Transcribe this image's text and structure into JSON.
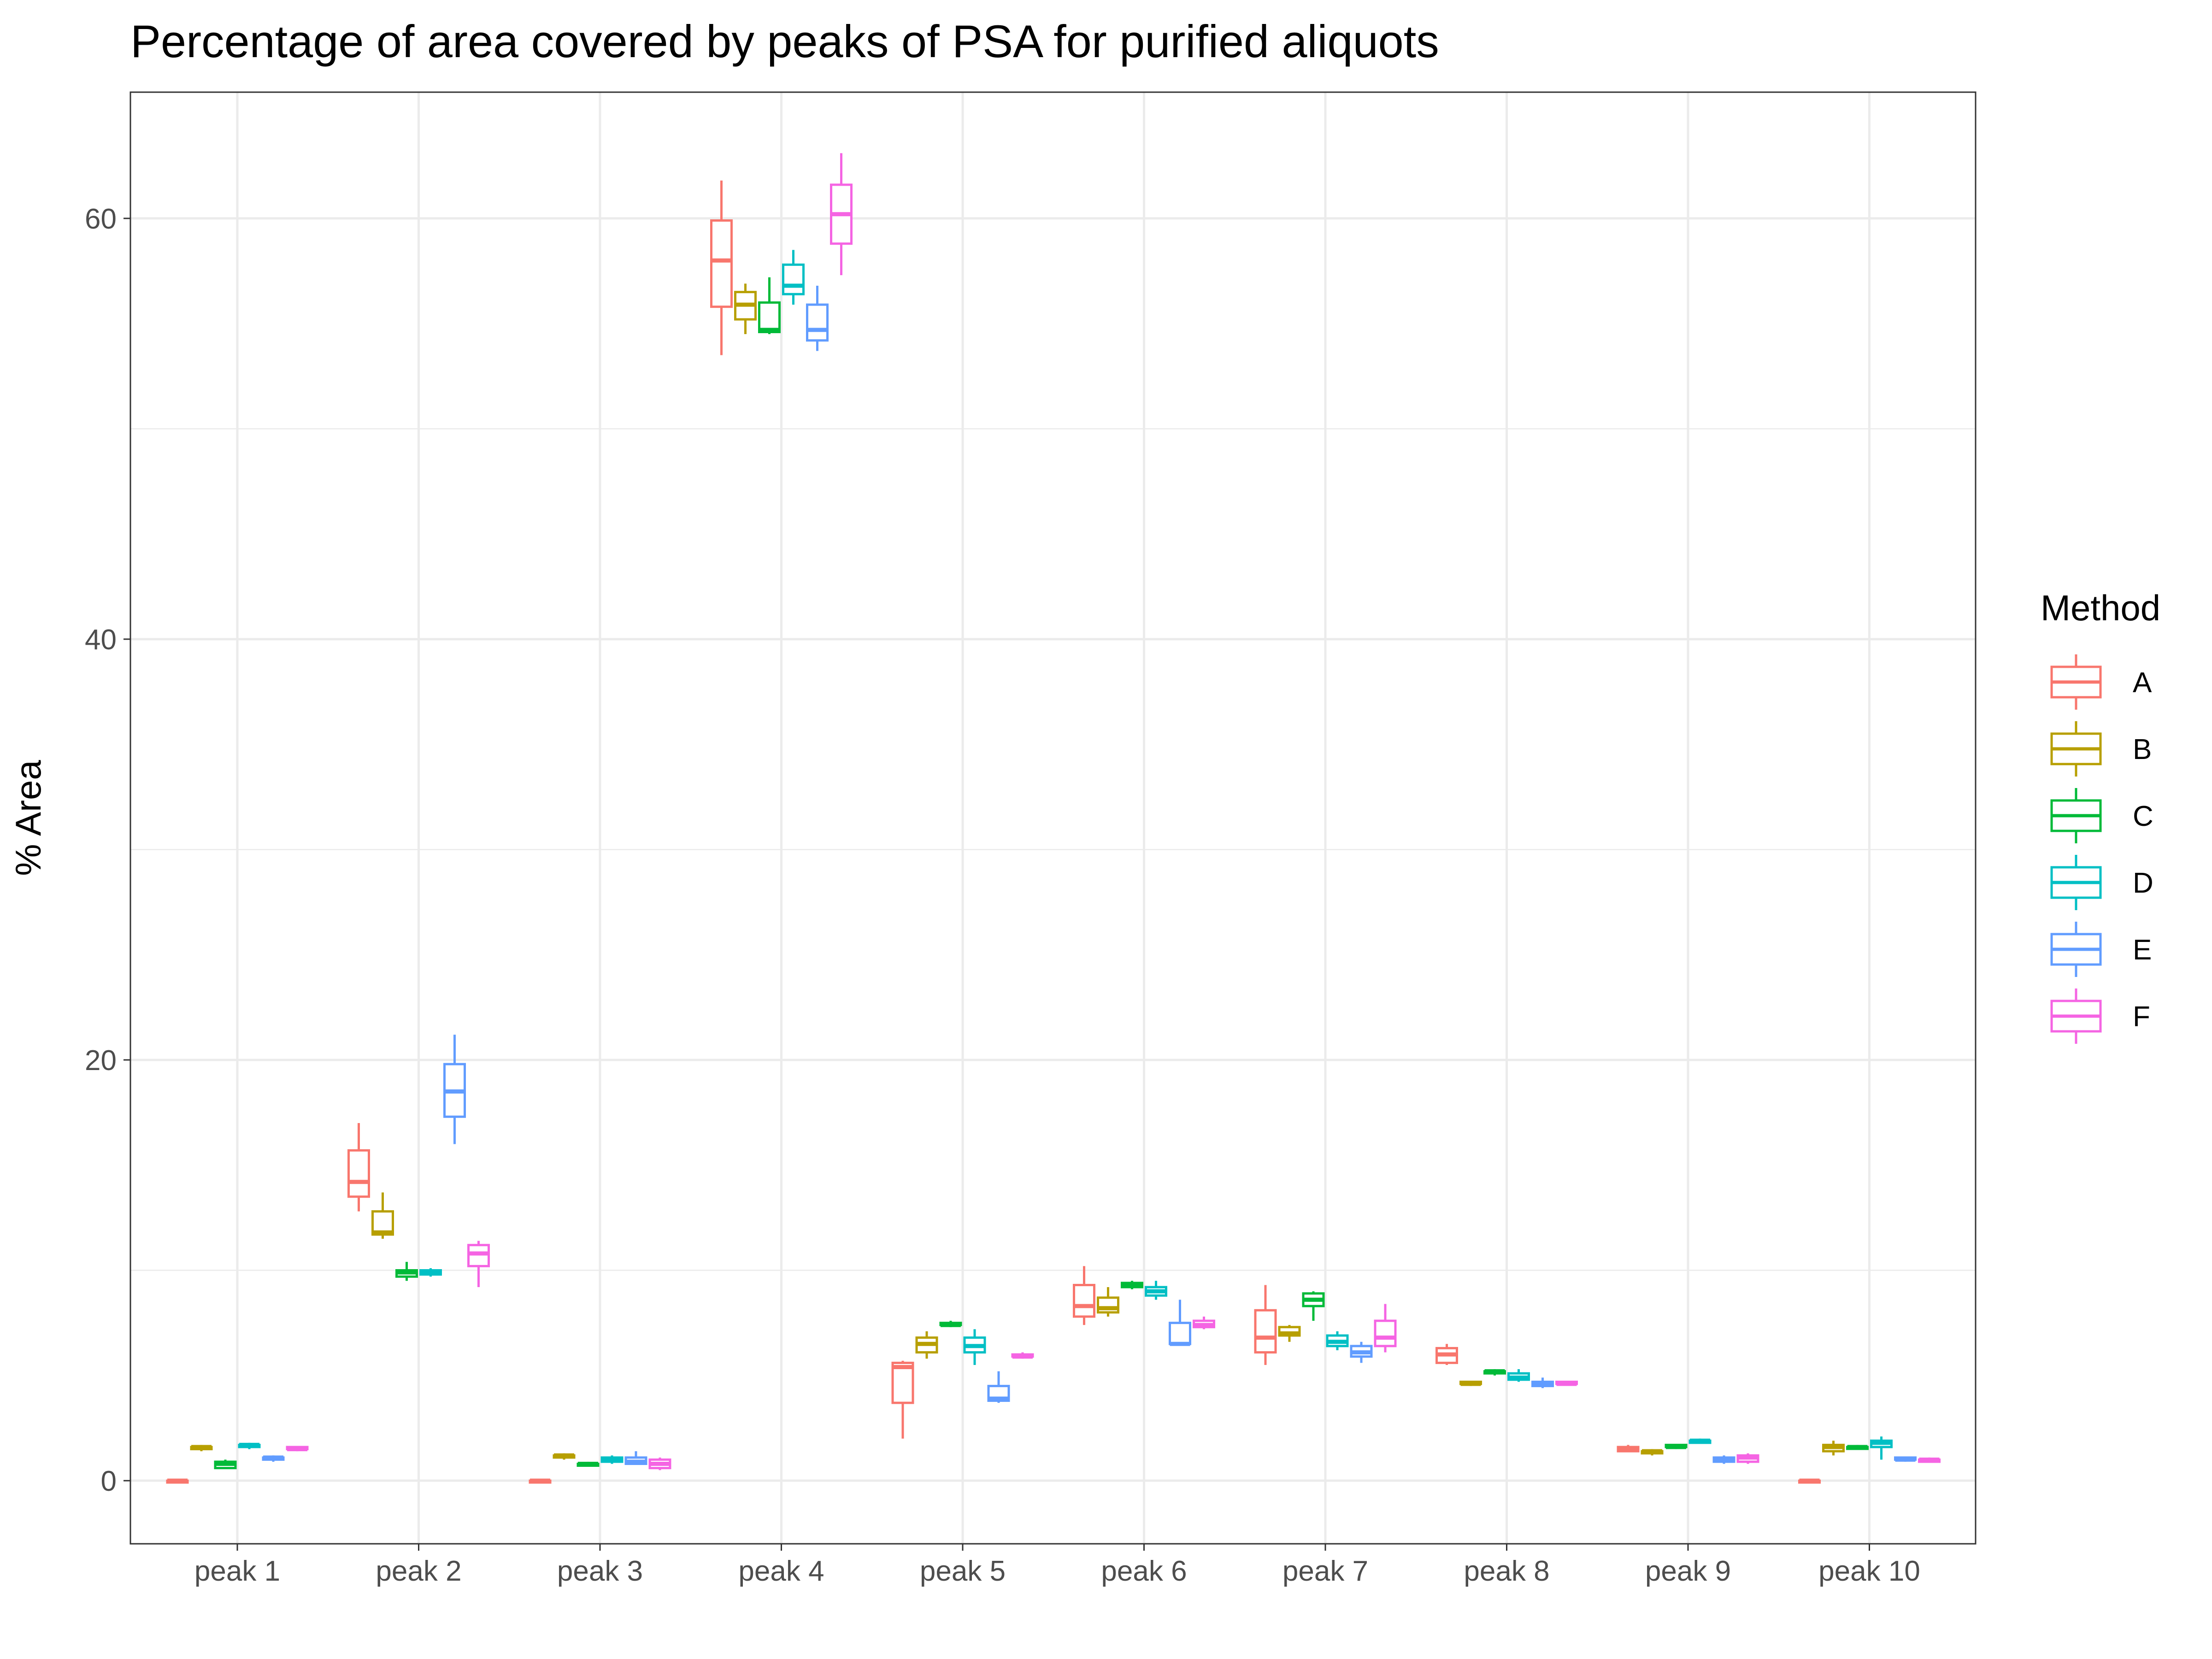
{
  "chart_data": {
    "type": "boxplot",
    "title": "Percentage of area covered by peaks of PSA for purified aliquots",
    "xlabel": "",
    "ylabel": "% Area",
    "ylim": [
      -3,
      66
    ],
    "yticks": [
      0,
      20,
      40,
      60
    ],
    "grid": true,
    "legend": {
      "title": "Method",
      "position": "right"
    },
    "categories": [
      "peak 1",
      "peak 2",
      "peak 3",
      "peak 4",
      "peak 5",
      "peak 6",
      "peak 7",
      "peak 8",
      "peak 9",
      "peak 10"
    ],
    "series": [
      {
        "name": "A",
        "color": "#F8766D",
        "boxes": [
          [
            0,
            0,
            0,
            0,
            0
          ],
          [
            12.8,
            13.5,
            14.2,
            15.7,
            17.0
          ],
          [
            0,
            0,
            0,
            0,
            0
          ],
          [
            53.5,
            55.8,
            58.0,
            59.9,
            61.8
          ],
          [
            2.0,
            3.7,
            5.4,
            5.6,
            5.7
          ],
          [
            7.4,
            7.8,
            8.3,
            9.3,
            10.2
          ],
          [
            5.5,
            6.1,
            6.8,
            8.1,
            9.3
          ],
          [
            5.5,
            5.6,
            6.0,
            6.3,
            6.5
          ],
          [
            1.4,
            1.4,
            1.5,
            1.6,
            1.7
          ],
          [
            0,
            0,
            0,
            0,
            0
          ]
        ]
      },
      {
        "name": "B",
        "color": "#B79F00",
        "boxes": [
          [
            1.4,
            1.5,
            1.6,
            1.6,
            1.7
          ],
          [
            11.5,
            11.7,
            11.8,
            12.8,
            13.7
          ],
          [
            1.0,
            1.1,
            1.2,
            1.2,
            1.3
          ],
          [
            54.5,
            55.2,
            55.9,
            56.5,
            56.9
          ],
          [
            5.8,
            6.1,
            6.5,
            6.8,
            7.1
          ],
          [
            7.8,
            8.0,
            8.2,
            8.7,
            9.2
          ],
          [
            6.6,
            6.9,
            7.0,
            7.3,
            7.4
          ],
          [
            4.5,
            4.6,
            4.6,
            4.7,
            4.7
          ],
          [
            1.2,
            1.3,
            1.4,
            1.4,
            1.5
          ],
          [
            1.2,
            1.4,
            1.6,
            1.7,
            1.9
          ]
        ]
      },
      {
        "name": "C",
        "color": "#00BA38",
        "boxes": [
          [
            0.6,
            0.6,
            0.8,
            0.9,
            1.0
          ],
          [
            9.5,
            9.7,
            9.9,
            10.0,
            10.4
          ],
          [
            0.7,
            0.8,
            0.8,
            0.8,
            0.9
          ],
          [
            54.5,
            54.6,
            54.7,
            56.0,
            57.2
          ],
          [
            7.3,
            7.4,
            7.4,
            7.5,
            7.6
          ],
          [
            9.1,
            9.2,
            9.3,
            9.4,
            9.5
          ],
          [
            7.6,
            8.3,
            8.6,
            8.9,
            9.0
          ],
          [
            5.0,
            5.1,
            5.2,
            5.2,
            5.3
          ],
          [
            1.5,
            1.6,
            1.6,
            1.7,
            1.7
          ],
          [
            1.5,
            1.6,
            1.6,
            1.6,
            1.7
          ]
        ]
      },
      {
        "name": "D",
        "color": "#00BFC4",
        "boxes": [
          [
            1.5,
            1.6,
            1.7,
            1.7,
            1.8
          ],
          [
            9.7,
            9.8,
            9.9,
            10.0,
            10.1
          ],
          [
            0.8,
            0.9,
            1.0,
            1.1,
            1.2
          ],
          [
            55.9,
            56.4,
            56.8,
            57.8,
            58.5
          ],
          [
            5.5,
            6.1,
            6.4,
            6.8,
            7.2
          ],
          [
            8.6,
            8.8,
            9.0,
            9.2,
            9.5
          ],
          [
            6.2,
            6.4,
            6.6,
            6.9,
            7.1
          ],
          [
            4.7,
            4.8,
            4.9,
            5.1,
            5.3
          ],
          [
            1.8,
            1.8,
            1.9,
            1.9,
            2.0
          ],
          [
            1.0,
            1.6,
            1.8,
            1.9,
            2.1
          ]
        ]
      },
      {
        "name": "E",
        "color": "#619CFF",
        "boxes": [
          [
            0.9,
            1.0,
            1.1,
            1.1,
            1.2
          ],
          [
            16.0,
            17.3,
            18.5,
            19.8,
            21.2
          ],
          [
            0.8,
            0.8,
            0.9,
            1.1,
            1.4
          ],
          [
            53.7,
            54.2,
            54.7,
            55.9,
            56.8
          ],
          [
            3.7,
            3.8,
            3.9,
            4.5,
            5.2
          ],
          [
            6.5,
            6.5,
            6.5,
            7.5,
            8.6
          ],
          [
            5.6,
            5.9,
            6.1,
            6.4,
            6.6
          ],
          [
            4.4,
            4.5,
            4.6,
            4.7,
            4.9
          ],
          [
            0.8,
            0.9,
            1.0,
            1.1,
            1.2
          ],
          [
            0.9,
            1.0,
            1.0,
            1.1,
            1.1
          ]
        ]
      },
      {
        "name": "F",
        "color": "#F564E3",
        "boxes": [
          [
            1.4,
            1.5,
            1.5,
            1.6,
            1.6
          ],
          [
            9.2,
            10.2,
            10.8,
            11.2,
            11.4
          ],
          [
            0.5,
            0.6,
            0.8,
            1.0,
            1.1
          ],
          [
            57.3,
            58.8,
            60.2,
            61.6,
            63.1
          ],
          [
            5.8,
            5.9,
            5.9,
            6.0,
            6.1
          ],
          [
            7.2,
            7.3,
            7.4,
            7.6,
            7.8
          ],
          [
            6.1,
            6.4,
            6.8,
            7.6,
            8.4
          ],
          [
            4.6,
            4.6,
            4.6,
            4.7,
            4.7
          ],
          [
            0.8,
            0.9,
            1.1,
            1.2,
            1.3
          ],
          [
            0.9,
            0.9,
            1.0,
            1.0,
            1.1
          ]
        ]
      }
    ]
  }
}
